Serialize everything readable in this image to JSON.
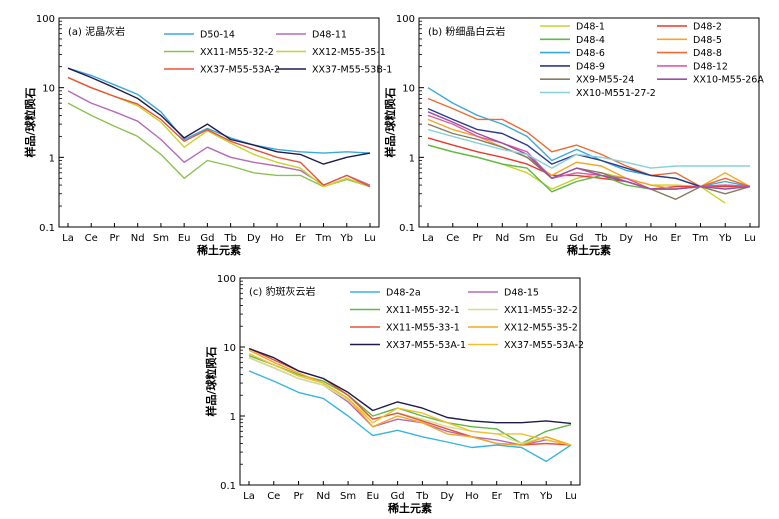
{
  "chart_data": [
    {
      "type": "line",
      "title": "(a) 泥晶灰岩",
      "xlabel": "稀土元素",
      "ylabel": "样品/球粒陨石",
      "yscale": "log",
      "ylim": [
        0.1,
        100
      ],
      "yticks": [
        "0.1",
        "1",
        "10",
        "100"
      ],
      "categories": [
        "La",
        "Ce",
        "Pr",
        "Nd",
        "Sm",
        "Eu",
        "Gd",
        "Tb",
        "Dy",
        "Ho",
        "Er",
        "Tm",
        "Yb",
        "Lu"
      ],
      "legend_columns": 2,
      "series": [
        {
          "name": "D50-14",
          "color": "#3ba8dd",
          "values": [
            19,
            15,
            11,
            8,
            4.5,
            1.8,
            2.6,
            1.9,
            1.5,
            1.3,
            1.2,
            1.15,
            1.2,
            1.15
          ]
        },
        {
          "name": "D48-11",
          "color": "#b36bb8",
          "values": [
            9,
            6,
            4.5,
            3.3,
            1.8,
            0.85,
            1.4,
            1.0,
            0.85,
            0.75,
            0.65,
            0.4,
            0.55,
            0.4
          ]
        },
        {
          "name": "XX11-M55-32-2",
          "color": "#8cc152",
          "values": [
            6,
            4,
            2.8,
            2.0,
            1.1,
            0.5,
            0.9,
            0.75,
            0.6,
            0.55,
            0.55,
            0.38,
            0.48,
            0.38
          ]
        },
        {
          "name": "XX12-M55-35-1",
          "color": "#c6d42b",
          "values": [
            14,
            10,
            7.5,
            5.5,
            3.2,
            1.4,
            2.4,
            1.6,
            1.1,
            0.85,
            0.7,
            0.38,
            0.5,
            0.38
          ]
        },
        {
          "name": "XX37-M55-53A-2",
          "color": "#e8523c",
          "values": [
            14,
            10,
            7.5,
            5.8,
            3.5,
            1.7,
            2.5,
            1.7,
            1.3,
            1.0,
            0.85,
            0.4,
            0.55,
            0.38
          ]
        },
        {
          "name": "XX37-M55-53B-1",
          "color": "#1f1b4d",
          "values": [
            19,
            14,
            10,
            7,
            4.0,
            1.9,
            3.0,
            1.8,
            1.5,
            1.2,
            1.1,
            0.8,
            1.0,
            1.15
          ]
        }
      ]
    },
    {
      "type": "line",
      "title": "(b) 粉细晶白云岩",
      "xlabel": "稀土元素",
      "ylabel": "样品/球粒陨石",
      "yscale": "log",
      "ylim": [
        0.1,
        100
      ],
      "yticks": [
        "0.1",
        "1",
        "10",
        "100"
      ],
      "categories": [
        "La",
        "Ce",
        "Pr",
        "Nd",
        "Sm",
        "Eu",
        "Gd",
        "Tb",
        "Dy",
        "Ho",
        "Er",
        "Tm",
        "Yb",
        "Lu"
      ],
      "legend_columns": 2,
      "series": [
        {
          "name": "D48-1",
          "color": "#c6d42b",
          "values": [
            1.5,
            1.2,
            1.0,
            0.8,
            0.6,
            0.35,
            0.5,
            0.6,
            0.5,
            0.4,
            0.4,
            0.38,
            0.22,
            null
          ]
        },
        {
          "name": "D48-2",
          "color": "#e83a2c",
          "values": [
            1.9,
            1.5,
            1.2,
            1.0,
            0.8,
            0.55,
            0.55,
            0.5,
            0.45,
            0.35,
            0.38,
            0.38,
            0.38,
            0.38
          ]
        },
        {
          "name": "D48-4",
          "color": "#5fb848",
          "values": [
            1.5,
            1.2,
            1.0,
            0.8,
            0.7,
            0.32,
            0.45,
            0.55,
            0.4,
            0.35,
            0.35,
            0.38,
            0.35,
            0.38
          ]
        },
        {
          "name": "D48-5",
          "color": "#f5a623",
          "values": [
            3.5,
            2.5,
            2.0,
            1.4,
            1.0,
            0.55,
            0.85,
            0.75,
            0.5,
            0.4,
            0.35,
            0.38,
            0.6,
            0.38
          ]
        },
        {
          "name": "D48-6",
          "color": "#3ba8dd",
          "values": [
            10,
            6,
            4,
            3,
            2.0,
            0.9,
            1.3,
            0.9,
            0.65,
            0.55,
            0.5,
            0.38,
            0.45,
            0.38
          ]
        },
        {
          "name": "D48-8",
          "color": "#ef6a33",
          "values": [
            7,
            5,
            3.5,
            3.5,
            2.3,
            1.2,
            1.5,
            1.1,
            0.75,
            0.55,
            0.6,
            0.38,
            0.5,
            0.38
          ]
        },
        {
          "name": "D48-9",
          "color": "#2b3a8c",
          "values": [
            5,
            3.5,
            2.5,
            2.2,
            1.5,
            0.8,
            1.1,
            0.9,
            0.7,
            0.55,
            0.5,
            0.38,
            0.4,
            0.38
          ]
        },
        {
          "name": "D48-12",
          "color": "#e05aa3",
          "values": [
            4,
            3,
            2,
            1.6,
            1.2,
            0.5,
            0.6,
            0.55,
            0.5,
            0.35,
            0.35,
            0.38,
            0.4,
            0.38
          ]
        },
        {
          "name": "XX9-M55-24",
          "color": "#8a7a65",
          "values": [
            3,
            2.2,
            1.8,
            1.4,
            1.0,
            0.5,
            0.7,
            0.6,
            0.45,
            0.35,
            0.25,
            0.38,
            0.3,
            0.38
          ]
        },
        {
          "name": "XX10-M55-26A",
          "color": "#9a4fa6",
          "values": [
            4.5,
            3.2,
            2.2,
            1.6,
            1.1,
            0.5,
            0.7,
            0.55,
            0.45,
            0.35,
            0.35,
            0.38,
            0.35,
            0.38
          ]
        },
        {
          "name": "XX10-M551-27-2",
          "color": "#8ad0d8",
          "values": [
            2.5,
            2.0,
            1.6,
            1.3,
            1.1,
            0.7,
            1.1,
            1.0,
            0.85,
            0.7,
            0.75,
            0.75,
            0.75,
            0.75
          ]
        }
      ]
    },
    {
      "type": "line",
      "title": "(c) 豹斑灰云岩",
      "xlabel": "稀土元素",
      "ylabel": "样品/球粒陨石",
      "yscale": "log",
      "ylim": [
        0.1,
        100
      ],
      "yticks": [
        "0.1",
        "1",
        "10",
        "100"
      ],
      "categories": [
        "La",
        "Ce",
        "Pr",
        "Nd",
        "Sm",
        "Eu",
        "Gd",
        "Tb",
        "Dy",
        "Ho",
        "Er",
        "Tm",
        "Yb",
        "Lu"
      ],
      "legend_columns": 2,
      "series": [
        {
          "name": "D48-2a",
          "color": "#3bb4e0",
          "values": [
            4.5,
            3.2,
            2.2,
            1.8,
            1.0,
            0.52,
            0.62,
            0.5,
            0.42,
            0.35,
            0.38,
            0.35,
            0.22,
            0.38
          ]
        },
        {
          "name": "D48-15",
          "color": "#b36bb8",
          "values": [
            7,
            5,
            3.5,
            2.8,
            1.6,
            0.7,
            0.9,
            0.8,
            0.6,
            0.5,
            0.45,
            0.38,
            0.45,
            0.38
          ]
        },
        {
          "name": "XX11-M55-32-1",
          "color": "#5fb848",
          "values": [
            7.5,
            5.5,
            4,
            3.2,
            2.0,
            1.0,
            1.3,
            1.0,
            0.8,
            0.7,
            0.65,
            0.4,
            0.6,
            0.75
          ]
        },
        {
          "name": "XX11-M55-32-2",
          "color": "#d2e08a",
          "values": [
            7,
            5,
            3.5,
            2.8,
            1.7,
            0.9,
            1.1,
            0.9,
            0.7,
            0.6,
            0.55,
            0.4,
            0.5,
            0.38
          ]
        },
        {
          "name": "XX11-M55-33-1",
          "color": "#e8523c",
          "values": [
            9.5,
            6.5,
            4.5,
            3.5,
            2.0,
            0.9,
            1.1,
            0.85,
            0.65,
            0.5,
            0.4,
            0.38,
            0.4,
            0.38
          ]
        },
        {
          "name": "XX12-M55-35-2",
          "color": "#f5a623",
          "values": [
            9,
            6,
            4.2,
            3.0,
            1.8,
            0.7,
            1.0,
            0.8,
            0.55,
            0.5,
            0.4,
            0.38,
            0.5,
            0.38
          ]
        },
        {
          "name": "XX37-M55-53A-1",
          "color": "#1f1b4d",
          "values": [
            9.5,
            7,
            4.5,
            3.5,
            2.2,
            1.2,
            1.6,
            1.3,
            0.95,
            0.85,
            0.8,
            0.8,
            0.85,
            0.78
          ]
        },
        {
          "name": "XX37-M55-53A-2",
          "color": "#f0c030",
          "values": [
            8,
            5.5,
            3.8,
            3.0,
            1.8,
            0.8,
            1.3,
            1.1,
            0.8,
            0.6,
            0.55,
            0.55,
            0.45,
            0.38
          ]
        }
      ]
    }
  ]
}
